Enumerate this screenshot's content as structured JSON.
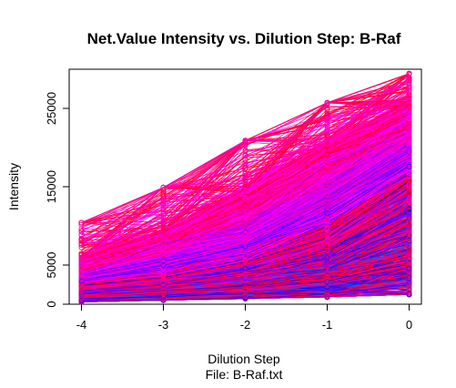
{
  "chart_data": {
    "type": "line",
    "title": "Net.Value Intensity vs. Dilution Step:  B-Raf",
    "xlabel": "Dilution Step",
    "sublabel": "File: B-Raf.txt",
    "ylabel": "Intensity",
    "x": [
      -4,
      -3,
      -2,
      -1,
      0
    ],
    "x_ticks": [
      "-4",
      "-3",
      "-2",
      "-1",
      "0"
    ],
    "y_ticks": [
      "0",
      "5000",
      "15000",
      "25000"
    ],
    "y_tick_values": [
      0,
      5000,
      15000,
      25000
    ],
    "xlim": [
      -4.15,
      0.15
    ],
    "ylim": [
      0,
      30000
    ],
    "grid": false,
    "legend": "none",
    "point_marker": "open-circle",
    "series_count_estimate": 1600,
    "series_percentiles": {
      "percent_levels": [
        0,
        5,
        25,
        50,
        75,
        95,
        100
      ],
      "at_x_-4": [
        300,
        700,
        1500,
        2500,
        3800,
        6000,
        10500
      ],
      "at_x_-3": [
        500,
        1000,
        2200,
        3600,
        6000,
        9500,
        15000
      ],
      "at_x_-2": [
        700,
        1400,
        3200,
        5600,
        9000,
        15000,
        21000
      ],
      "at_x_-1": [
        900,
        2000,
        5000,
        9500,
        15000,
        21000,
        25800
      ],
      "at_x_0": [
        1200,
        3200,
        9500,
        16000,
        21000,
        26000,
        29500
      ]
    },
    "palette": [
      "#ff0000",
      "#ff0033",
      "#ff0066",
      "#ff0099",
      "#ff00cc",
      "#ff00ff",
      "#cc00ff",
      "#9900ff",
      "#6600ff",
      "#3300ff",
      "#0000ff",
      "#0033ff",
      "#0066ff",
      "#0099ff",
      "#00ccff",
      "#00ffff",
      "#00ffcc",
      "#00ff66",
      "#00ff00",
      "#66ff00",
      "#ccff00",
      "#ffff00"
    ]
  }
}
